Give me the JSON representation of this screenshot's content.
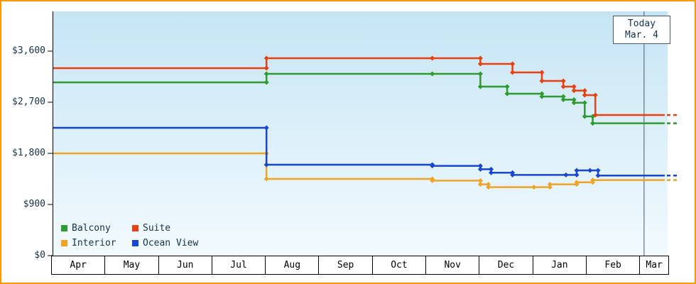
{
  "chart": {
    "today_box": {
      "line1": "Today",
      "line2": "Mar. 4"
    }
  },
  "y_axis": {
    "labels": [
      "$0",
      "$900",
      "$1,800",
      "$2,700",
      "$3,600"
    ],
    "values": [
      0,
      900,
      1800,
      2700,
      3600
    ]
  },
  "x_axis": {
    "months": [
      "Apr",
      "May",
      "Jun",
      "Jul",
      "Aug",
      "Sep",
      "Oct",
      "Nov",
      "Dec",
      "Jan",
      "Feb",
      "Mar"
    ]
  },
  "legend": {
    "items": [
      {
        "label": "Balcony",
        "color": "#2e9b2e"
      },
      {
        "label": "Suite",
        "color": "#e8400e"
      },
      {
        "label": "Interior",
        "color": "#efa424"
      },
      {
        "label": "Ocean View",
        "color": "#1747d2"
      }
    ]
  },
  "colors": {
    "frame_border": "#ff9800",
    "plot_gradient_top": "#c6e5f4",
    "plot_gradient_bottom": "#f2fafe",
    "axis_line": "#000000",
    "axis_text": "#13324e",
    "month_text": "#000000",
    "today_line": "#44596e"
  },
  "chart_data": {
    "type": "line",
    "subtype": "step",
    "title": "",
    "ylim": [
      0,
      3600
    ],
    "grid": false,
    "legend_position": "bottom-left inside plot",
    "x_unit": "month_index: 0 = start of Apr, 11.5 = right edge of plot",
    "categories": [
      "Apr",
      "May",
      "Jun",
      "Jul",
      "Aug",
      "Sep",
      "Oct",
      "Nov",
      "Dec",
      "Jan",
      "Feb",
      "Mar"
    ],
    "today_x": 11.06,
    "today_label": "Today Mar. 4",
    "series": [
      {
        "name": "Interior",
        "color": "#efa424",
        "steps": [
          [
            0,
            1800
          ],
          [
            4,
            1350
          ],
          [
            7.1,
            1320
          ],
          [
            8,
            1255
          ],
          [
            8.15,
            1205
          ],
          [
            9.0,
            1205
          ],
          [
            9.3,
            1255
          ],
          [
            9.8,
            1290
          ],
          [
            10.1,
            1330
          ]
        ]
      },
      {
        "name": "Ocean View",
        "color": "#1747d2",
        "steps": [
          [
            0,
            2250
          ],
          [
            4,
            1600
          ],
          [
            7.1,
            1580
          ],
          [
            8,
            1520
          ],
          [
            8.2,
            1460
          ],
          [
            8.6,
            1420
          ],
          [
            9.6,
            1420
          ],
          [
            9.8,
            1500
          ],
          [
            10.05,
            1500
          ],
          [
            10.2,
            1410
          ]
        ]
      },
      {
        "name": "Balcony",
        "color": "#2e9b2e",
        "steps": [
          [
            0,
            3050
          ],
          [
            4,
            3200
          ],
          [
            7.1,
            3200
          ],
          [
            8,
            2975
          ],
          [
            8.5,
            2850
          ],
          [
            9.15,
            2800
          ],
          [
            9.55,
            2745
          ],
          [
            9.75,
            2690
          ],
          [
            9.95,
            2450
          ],
          [
            10.1,
            2330
          ]
        ]
      },
      {
        "name": "Suite",
        "color": "#e8400e",
        "steps": [
          [
            0,
            3300
          ],
          [
            4,
            3475
          ],
          [
            7.1,
            3475
          ],
          [
            8,
            3375
          ],
          [
            8.6,
            3225
          ],
          [
            9.15,
            3075
          ],
          [
            9.55,
            2975
          ],
          [
            9.75,
            2905
          ],
          [
            9.95,
            2825
          ],
          [
            10.15,
            2475
          ]
        ]
      }
    ]
  }
}
